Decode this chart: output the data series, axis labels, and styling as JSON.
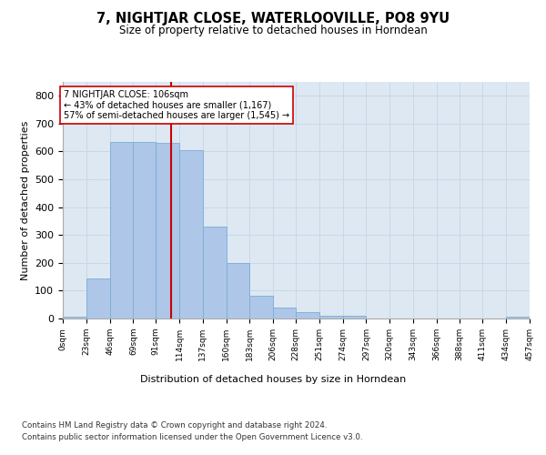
{
  "title": "7, NIGHTJAR CLOSE, WATERLOOVILLE, PO8 9YU",
  "subtitle": "Size of property relative to detached houses in Horndean",
  "xlabel": "Distribution of detached houses by size in Horndean",
  "ylabel": "Number of detached properties",
  "bin_edges": [
    0,
    23,
    46,
    69,
    91,
    114,
    137,
    160,
    183,
    206,
    228,
    251,
    274,
    297,
    320,
    343,
    366,
    388,
    411,
    434,
    457
  ],
  "bar_heights": [
    5,
    145,
    635,
    635,
    630,
    605,
    330,
    200,
    82,
    40,
    23,
    10,
    10,
    0,
    0,
    0,
    0,
    0,
    0,
    5
  ],
  "bar_color": "#aec6e8",
  "bar_edgecolor": "#7aadd4",
  "grid_color": "#c8d8e8",
  "bg_color": "#dde8f3",
  "vline_x": 106,
  "vline_color": "#cc0000",
  "annotation_text": "7 NIGHTJAR CLOSE: 106sqm\n← 43% of detached houses are smaller (1,167)\n57% of semi-detached houses are larger (1,545) →",
  "annotation_box_color": "#ffffff",
  "annotation_box_edgecolor": "#cc0000",
  "ylim": [
    0,
    850
  ],
  "yticks": [
    0,
    100,
    200,
    300,
    400,
    500,
    600,
    700,
    800
  ],
  "footer1": "Contains HM Land Registry data © Crown copyright and database right 2024.",
  "footer2": "Contains public sector information licensed under the Open Government Licence v3.0.",
  "tick_labels": [
    "0sqm",
    "23sqm",
    "46sqm",
    "69sqm",
    "91sqm",
    "114sqm",
    "137sqm",
    "160sqm",
    "183sqm",
    "206sqm",
    "228sqm",
    "251sqm",
    "274sqm",
    "297sqm",
    "320sqm",
    "343sqm",
    "366sqm",
    "388sqm",
    "411sqm",
    "434sqm",
    "457sqm"
  ]
}
